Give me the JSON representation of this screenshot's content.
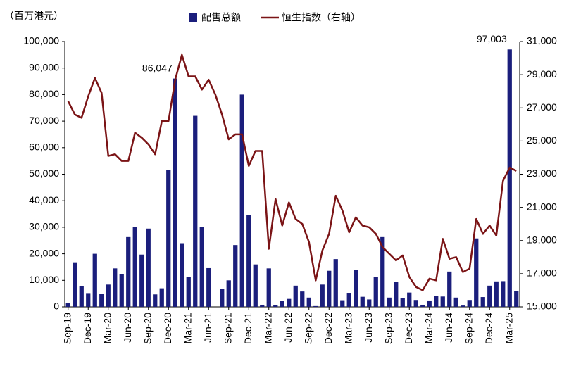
{
  "chart_data": {
    "type": "bar_line",
    "y_label": "（百万港元）",
    "categories": [
      "Sep-19",
      null,
      null,
      "Dec-19",
      null,
      null,
      "Mar-20",
      null,
      null,
      "Jun-20",
      null,
      null,
      "Sep-20",
      null,
      null,
      "Dec-20",
      null,
      null,
      "Mar-21",
      null,
      null,
      "Jun-21",
      null,
      null,
      "Sep-21",
      null,
      null,
      "Dec-21",
      null,
      null,
      "Mar-22",
      null,
      null,
      "Jun-22",
      null,
      null,
      "Sep-22",
      null,
      null,
      "Dec-22",
      null,
      null,
      "Mar-23",
      null,
      null,
      "Jun-23",
      null,
      null,
      "Sep-23",
      null,
      null,
      "Dec-23",
      null,
      null,
      "Mar-24",
      null,
      null,
      "Jun-24",
      null,
      null,
      "Sep-24",
      null,
      null,
      "Dec-24",
      null,
      null,
      "Mar-25",
      null
    ],
    "series": [
      {
        "name": "配售总额",
        "type": "bar",
        "color": "#1b1e7c",
        "values": [
          1500,
          16800,
          7800,
          5200,
          20000,
          5000,
          8400,
          14500,
          12300,
          26300,
          30000,
          19700,
          29500,
          4700,
          7000,
          51500,
          86047,
          24000,
          11400,
          72000,
          30200,
          14600,
          0,
          6700,
          10000,
          23300,
          80000,
          34700,
          16000,
          800,
          14500,
          600,
          2200,
          3000,
          8000,
          5800,
          3500,
          300,
          8400,
          13600,
          18000,
          2500,
          5300,
          13800,
          3800,
          2800,
          11300,
          26300,
          3500,
          9400,
          3200,
          5400,
          2600,
          800,
          2400,
          4100,
          3900,
          13300,
          3500,
          500,
          2600,
          25800,
          3700,
          8000,
          9600,
          9700,
          97003,
          5900
        ],
        "value_labels": [
          null,
          null,
          null,
          null,
          null,
          null,
          null,
          null,
          null,
          null,
          null,
          null,
          null,
          null,
          null,
          null,
          "86,047",
          null,
          null,
          null,
          null,
          null,
          null,
          null,
          null,
          null,
          null,
          null,
          null,
          null,
          null,
          null,
          null,
          null,
          null,
          null,
          null,
          null,
          null,
          null,
          null,
          null,
          null,
          null,
          null,
          null,
          null,
          null,
          null,
          null,
          null,
          null,
          null,
          null,
          null,
          null,
          null,
          null,
          null,
          null,
          null,
          null,
          null,
          null,
          null,
          null,
          "97,003",
          null
        ]
      },
      {
        "name": "恒生指数（右轴）",
        "type": "line",
        "axis": "y2",
        "color": "#7b1416",
        "values": [
          27400,
          26600,
          26400,
          27700,
          28800,
          27900,
          24100,
          24200,
          23800,
          23800,
          25500,
          25200,
          24800,
          24200,
          26200,
          26200,
          28700,
          30200,
          28900,
          28900,
          28100,
          28700,
          27800,
          26600,
          25100,
          25400,
          25400,
          23500,
          24400,
          24400,
          18500,
          21500,
          19900,
          21300,
          20300,
          20000,
          18900,
          16600,
          18400,
          19400,
          21700,
          20800,
          19500,
          20400,
          19900,
          19800,
          19400,
          18600,
          18200,
          17800,
          18100,
          16800,
          16200,
          16000,
          16700,
          16600,
          19100,
          17900,
          18000,
          17100,
          17300,
          20300,
          19400,
          19900,
          19300,
          22600,
          23400,
          23200
        ]
      }
    ],
    "ylim": [
      0,
      100000
    ],
    "yticks": [
      0,
      {
        "value": 10000,
        "label": "10,000"
      },
      {
        "value": 20000,
        "label": "20,000"
      },
      {
        "value": 30000,
        "label": "30,000"
      },
      {
        "value": 40000,
        "label": "40,000"
      },
      {
        "value": 50000,
        "label": "50,000"
      },
      {
        "value": 60000,
        "label": "60,000"
      },
      {
        "value": 70000,
        "label": "70,000"
      },
      {
        "value": 80000,
        "label": "80,000"
      },
      {
        "value": 90000,
        "label": "90,000"
      },
      {
        "value": 100000,
        "label": "100,000"
      }
    ],
    "y2lim": [
      15000,
      31000
    ],
    "y2ticks": [
      {
        "value": 15000,
        "label": "15,000"
      },
      {
        "value": 17000,
        "label": "17,000"
      },
      {
        "value": 19000,
        "label": "19,000"
      },
      {
        "value": 21000,
        "label": "21,000"
      },
      {
        "value": 23000,
        "label": "23,000"
      },
      {
        "value": 25000,
        "label": "25,000"
      },
      {
        "value": 27000,
        "label": "27,000"
      },
      {
        "value": 29000,
        "label": "29,000"
      },
      {
        "value": 31000,
        "label": "31,000"
      }
    ],
    "grid": false,
    "legend": "top"
  }
}
